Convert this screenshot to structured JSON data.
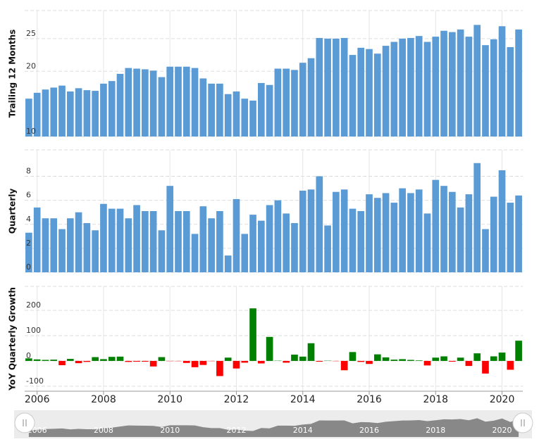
{
  "chart_data": [
    {
      "type": "bar",
      "ylabel": "Trailing 12 Months",
      "color": "#5b9bd5",
      "x": [
        2005.75,
        2006,
        2006.25,
        2006.5,
        2006.75,
        2007,
        2007.25,
        2007.5,
        2007.75,
        2008,
        2008.25,
        2008.5,
        2008.75,
        2009,
        2009.25,
        2009.5,
        2009.75,
        2010,
        2010.25,
        2010.5,
        2010.75,
        2011,
        2011.25,
        2011.5,
        2011.75,
        2012,
        2012.25,
        2012.5,
        2012.75,
        2013,
        2013.25,
        2013.5,
        2013.75,
        2014,
        2014.25,
        2014.5,
        2014.75,
        2015,
        2015.25,
        2015.5,
        2015.75,
        2016,
        2016.25,
        2016.5,
        2016.75,
        2017,
        2017.25,
        2017.5,
        2017.75,
        2018,
        2018.25,
        2018.5,
        2018.75,
        2019,
        2019.25,
        2019.5,
        2019.75,
        2020,
        2020.25,
        2020.5
      ],
      "values": [
        15.8,
        16.7,
        17.2,
        17.5,
        17.8,
        16.9,
        17.4,
        17.1,
        17.0,
        18.1,
        18.5,
        19.6,
        20.5,
        20.4,
        20.3,
        20.1,
        19.1,
        20.7,
        20.7,
        20.7,
        20.5,
        18.9,
        18.1,
        18.1,
        16.5,
        16.9,
        15.8,
        15.5,
        18.2,
        17.9,
        20.4,
        20.4,
        20.2,
        21.3,
        22.0,
        25.1,
        25.0,
        25.0,
        25.1,
        22.5,
        23.6,
        23.4,
        22.7,
        23.9,
        24.5,
        25.0,
        25.1,
        25.4,
        24.5,
        25.3,
        26.2,
        26.0,
        26.4,
        25.3,
        27.1,
        24.0,
        24.9,
        26.9,
        23.7,
        26.4
      ],
      "xlim": [
        2005.625,
        2020.625
      ],
      "ylim": [
        10,
        29.3
      ],
      "yticks": [
        10,
        20,
        25
      ],
      "grid": true
    },
    {
      "type": "bar",
      "ylabel": "Quarterly",
      "color": "#5b9bd5",
      "x": [
        2005.75,
        2006,
        2006.25,
        2006.5,
        2006.75,
        2007,
        2007.25,
        2007.5,
        2007.75,
        2008,
        2008.25,
        2008.5,
        2008.75,
        2009,
        2009.25,
        2009.5,
        2009.75,
        2010,
        2010.25,
        2010.5,
        2010.75,
        2011,
        2011.25,
        2011.5,
        2011.75,
        2012,
        2012.25,
        2012.5,
        2012.75,
        2013,
        2013.25,
        2013.5,
        2013.75,
        2014,
        2014.25,
        2014.5,
        2014.75,
        2015,
        2015.25,
        2015.5,
        2015.75,
        2016,
        2016.25,
        2016.5,
        2016.75,
        2017,
        2017.25,
        2017.5,
        2017.75,
        2018,
        2018.25,
        2018.5,
        2018.75,
        2019,
        2019.25,
        2019.5,
        2019.75,
        2020,
        2020.25,
        2020.5
      ],
      "values": [
        3.3,
        5.4,
        4.5,
        4.5,
        3.6,
        4.5,
        5.0,
        4.1,
        3.5,
        5.7,
        5.3,
        5.3,
        4.5,
        5.6,
        5.1,
        5.1,
        3.5,
        7.2,
        5.1,
        5.1,
        3.2,
        5.5,
        4.5,
        5.1,
        1.4,
        6.1,
        3.2,
        4.8,
        4.3,
        5.6,
        6.0,
        4.9,
        4.1,
        6.8,
        6.9,
        8.0,
        3.9,
        6.7,
        6.9,
        5.3,
        5.1,
        6.5,
        6.2,
        6.6,
        5.8,
        7.0,
        6.6,
        6.9,
        4.9,
        7.7,
        7.2,
        6.7,
        5.4,
        6.5,
        9.1,
        3.6,
        6.3,
        8.5,
        5.8,
        6.4
      ],
      "xlim": [
        2005.625,
        2020.625
      ],
      "ylim": [
        0,
        10.2
      ],
      "yticks": [
        0,
        2,
        4,
        6,
        8
      ],
      "grid": true
    },
    {
      "type": "bar",
      "ylabel": "YoY Quarterly Growth",
      "positive_color": "#008000",
      "negative_color": "#ff0000",
      "x": [
        2005.75,
        2006,
        2006.25,
        2006.5,
        2006.75,
        2007,
        2007.25,
        2007.5,
        2007.75,
        2008,
        2008.25,
        2008.5,
        2008.75,
        2009,
        2009.25,
        2009.5,
        2009.75,
        2010,
        2010.25,
        2010.5,
        2010.75,
        2011,
        2011.25,
        2011.5,
        2011.75,
        2012,
        2012.25,
        2012.5,
        2012.75,
        2013,
        2013.25,
        2013.5,
        2013.75,
        2014,
        2014.25,
        2014.5,
        2014.75,
        2015,
        2015.25,
        2015.5,
        2015.75,
        2016,
        2016.25,
        2016.5,
        2016.75,
        2017,
        2017.25,
        2017.5,
        2017.75,
        2018,
        2018.25,
        2018.5,
        2018.75,
        2019,
        2019.25,
        2019.5,
        2019.75,
        2020,
        2020.25,
        2020.5
      ],
      "values": [
        10,
        6,
        4,
        5,
        -17,
        8,
        -9,
        -4,
        15,
        7,
        16,
        17,
        -4,
        -3,
        -3,
        -22,
        15,
        -1,
        -1,
        -8,
        -25,
        -16,
        -1,
        -60,
        13,
        -30,
        -7,
        208,
        -10,
        95,
        1,
        -7,
        25,
        17,
        70,
        -3,
        1,
        -1,
        -37,
        35,
        -4,
        -12,
        26,
        14,
        5,
        7,
        4,
        2,
        -18,
        13,
        18,
        -3,
        13,
        -20,
        30,
        -50,
        18,
        33,
        -35,
        80
      ],
      "xlim": [
        2005.625,
        2020.625
      ],
      "ylim": [
        -120,
        295
      ],
      "yticks": [
        -100,
        0,
        100,
        200
      ],
      "xticks": [
        2006,
        2008,
        2010,
        2012,
        2014,
        2016,
        2018,
        2020
      ],
      "grid": true
    }
  ]
}
